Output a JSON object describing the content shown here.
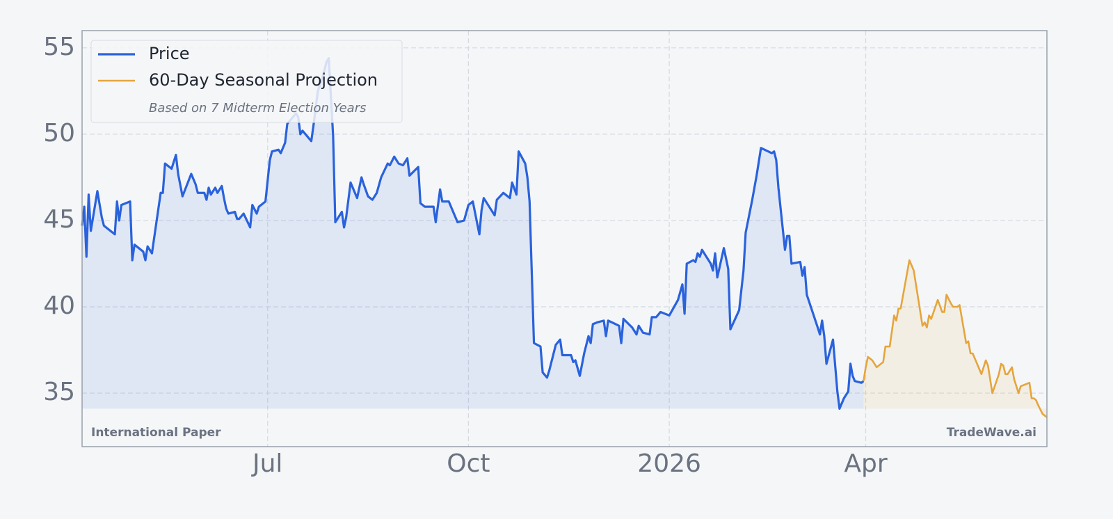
{
  "chart_data": {
    "type": "line",
    "footer_left": "International Paper",
    "footer_right": "TradeWave.ai",
    "legend_note": "Based on 7 Midterm Election Years",
    "legend": "upper left",
    "grid": true,
    "area_fill": true,
    "xlim": [
      "2025-04-07",
      "2026-06-23"
    ],
    "xticks": [
      {
        "value": "2025-07-01",
        "label": "Jul"
      },
      {
        "value": "2025-10-01",
        "label": "Oct"
      },
      {
        "value": "2026-01-01",
        "label": "2026"
      },
      {
        "value": "2026-04-01",
        "label": "Apr"
      }
    ],
    "ylim": [
      31.9,
      56.0
    ],
    "yticks": [
      35,
      40,
      45,
      50,
      55
    ],
    "series": [
      {
        "name": "Price",
        "color": "#2a62dc",
        "x": [
          "2025-04-07",
          "2025-04-08",
          "2025-04-09",
          "2025-04-10",
          "2025-04-11",
          "2025-04-14",
          "2025-04-16",
          "2025-04-17",
          "2025-04-20",
          "2025-04-22",
          "2025-04-23",
          "2025-04-24",
          "2025-04-25",
          "2025-04-29",
          "2025-04-30",
          "2025-05-01",
          "2025-05-05",
          "2025-05-06",
          "2025-05-07",
          "2025-05-09",
          "2025-05-13",
          "2025-05-14",
          "2025-05-15",
          "2025-05-18",
          "2025-05-20",
          "2025-05-21",
          "2025-05-23",
          "2025-05-27",
          "2025-05-29",
          "2025-05-30",
          "2025-06-02",
          "2025-06-03",
          "2025-06-04",
          "2025-06-05",
          "2025-06-07",
          "2025-06-08",
          "2025-06-10",
          "2025-06-11",
          "2025-06-12",
          "2025-06-13",
          "2025-06-16",
          "2025-06-17",
          "2025-06-18",
          "2025-06-20",
          "2025-06-23",
          "2025-06-24",
          "2025-06-26",
          "2025-06-27",
          "2025-06-30",
          "2025-07-02",
          "2025-07-03",
          "2025-07-06",
          "2025-07-07",
          "2025-07-09",
          "2025-07-10",
          "2025-07-14",
          "2025-07-15",
          "2025-07-16",
          "2025-07-17",
          "2025-07-21",
          "2025-07-22",
          "2025-07-24",
          "2025-07-26",
          "2025-07-28",
          "2025-07-29",
          "2025-07-31",
          "2025-08-01",
          "2025-08-04",
          "2025-08-05",
          "2025-08-06",
          "2025-08-08",
          "2025-08-11",
          "2025-08-13",
          "2025-08-14",
          "2025-08-16",
          "2025-08-18",
          "2025-08-20",
          "2025-08-22",
          "2025-08-25",
          "2025-08-26",
          "2025-08-28",
          "2025-08-30",
          "2025-09-01",
          "2025-09-03",
          "2025-09-04",
          "2025-09-08",
          "2025-09-09",
          "2025-09-11",
          "2025-09-15",
          "2025-09-16",
          "2025-09-18",
          "2025-09-19",
          "2025-09-22",
          "2025-09-23",
          "2025-09-26",
          "2025-09-29",
          "2025-10-01",
          "2025-10-03",
          "2025-10-06",
          "2025-10-07",
          "2025-10-08",
          "2025-10-13",
          "2025-10-14",
          "2025-10-17",
          "2025-10-20",
          "2025-10-21",
          "2025-10-23",
          "2025-10-24",
          "2025-10-27",
          "2025-10-28",
          "2025-10-29",
          "2025-10-31",
          "2025-11-03",
          "2025-11-04",
          "2025-11-06",
          "2025-11-07",
          "2025-11-10",
          "2025-11-12",
          "2025-11-13",
          "2025-11-17",
          "2025-11-18",
          "2025-11-19",
          "2025-11-21",
          "2025-11-23",
          "2025-11-25",
          "2025-11-26",
          "2025-11-27",
          "2025-11-29",
          "2025-12-02",
          "2025-12-03",
          "2025-12-04",
          "2025-12-09",
          "2025-12-10",
          "2025-12-11",
          "2025-12-15",
          "2025-12-17",
          "2025-12-18",
          "2025-12-20",
          "2025-12-23",
          "2025-12-24",
          "2025-12-26",
          "2025-12-28",
          "2025-12-30",
          "2026-01-01",
          "2026-01-05",
          "2026-01-07",
          "2026-01-08",
          "2026-01-09",
          "2026-01-12",
          "2026-01-13",
          "2026-01-14",
          "2026-01-15",
          "2026-01-16",
          "2026-01-20",
          "2026-01-21",
          "2026-01-22",
          "2026-01-23",
          "2026-01-26",
          "2026-01-28",
          "2026-01-29",
          "2026-02-02",
          "2026-02-04",
          "2026-02-05",
          "2026-02-08",
          "2026-02-10",
          "2026-02-12",
          "2026-02-17",
          "2026-02-18",
          "2026-02-19",
          "2026-02-20",
          "2026-02-23",
          "2026-02-24",
          "2026-02-25",
          "2026-02-26",
          "2026-03-02",
          "2026-03-03",
          "2026-03-04",
          "2026-03-05",
          "2026-03-10",
          "2026-03-11",
          "2026-03-12",
          "2026-03-13",
          "2026-03-14",
          "2026-03-17",
          "2026-03-18",
          "2026-03-19",
          "2026-03-20",
          "2026-03-22",
          "2026-03-24",
          "2026-03-25",
          "2026-03-26",
          "2026-03-27",
          "2026-03-30",
          "2026-03-31"
        ],
        "values": [
          44.7,
          45.8,
          42.9,
          46.5,
          44.4,
          46.7,
          45.2,
          44.7,
          44.4,
          44.2,
          46.1,
          45.0,
          45.9,
          46.1,
          42.7,
          43.6,
          43.2,
          42.7,
          43.5,
          43.1,
          46.6,
          46.6,
          48.3,
          48.0,
          48.8,
          47.7,
          46.4,
          47.7,
          47.1,
          46.6,
          46.6,
          46.2,
          46.9,
          46.5,
          46.9,
          46.6,
          47.0,
          46.3,
          45.7,
          45.4,
          45.5,
          45.1,
          45.1,
          45.4,
          44.6,
          45.9,
          45.4,
          45.8,
          46.1,
          48.5,
          49.0,
          49.1,
          48.9,
          49.5,
          50.6,
          51.2,
          51.0,
          50.0,
          50.2,
          49.6,
          50.5,
          52.5,
          53.2,
          54.2,
          54.4,
          49.9,
          44.9,
          45.5,
          44.6,
          45.2,
          47.2,
          46.3,
          47.5,
          47.1,
          46.4,
          46.2,
          46.6,
          47.5,
          48.3,
          48.2,
          48.7,
          48.3,
          48.2,
          48.6,
          47.6,
          48.1,
          46.0,
          45.8,
          45.8,
          44.9,
          46.8,
          46.1,
          46.1,
          45.8,
          44.9,
          45.0,
          45.9,
          46.1,
          44.2,
          45.6,
          46.3,
          45.3,
          46.2,
          46.6,
          46.3,
          47.2,
          46.5,
          49.0,
          48.3,
          47.5,
          46.1,
          37.9,
          37.7,
          36.2,
          35.9,
          36.3,
          37.8,
          38.1,
          37.2,
          37.2,
          36.8,
          36.9,
          36.0,
          37.3,
          38.3,
          37.9,
          39.0,
          39.1,
          39.2,
          38.3,
          39.2,
          38.9,
          37.9,
          39.3,
          38.8,
          38.4,
          38.9,
          38.5,
          38.4,
          39.4,
          39.4,
          39.7,
          39.6,
          39.5,
          40.4,
          41.3,
          39.6,
          42.5,
          42.7,
          42.6,
          43.1,
          42.9,
          43.3,
          42.5,
          42.1,
          43.1,
          41.7,
          43.4,
          42.2,
          38.7,
          39.8,
          42.1,
          44.3,
          46.2,
          47.6,
          49.2,
          48.9,
          49.0,
          48.5,
          46.9,
          43.3,
          44.1,
          44.1,
          42.5,
          42.6,
          41.8,
          42.3,
          40.7,
          38.8,
          38.4,
          39.2,
          38.3,
          36.7,
          38.1,
          36.6,
          35.1,
          34.1,
          34.7,
          35.1,
          36.7,
          36.0,
          35.7,
          35.6,
          35.7
        ]
      },
      {
        "name": "60-Day Seasonal Projection",
        "color": "#e5a53c",
        "x": [
          "2026-03-31",
          "2026-04-01",
          "2026-04-02",
          "2026-04-04",
          "2026-04-06",
          "2026-04-09",
          "2026-04-10",
          "2026-04-12",
          "2026-04-14",
          "2026-04-15",
          "2026-04-16",
          "2026-04-17",
          "2026-04-21",
          "2026-04-23",
          "2026-04-27",
          "2026-04-28",
          "2026-04-29",
          "2026-04-30",
          "2026-05-01",
          "2026-05-04",
          "2026-05-06",
          "2026-05-07",
          "2026-05-08",
          "2026-05-10",
          "2026-05-11",
          "2026-05-13",
          "2026-05-14",
          "2026-05-17",
          "2026-05-18",
          "2026-05-19",
          "2026-05-20",
          "2026-05-22",
          "2026-05-24",
          "2026-05-26",
          "2026-05-27",
          "2026-05-29",
          "2026-06-01",
          "2026-06-02",
          "2026-06-03",
          "2026-06-04",
          "2026-06-05",
          "2026-06-07",
          "2026-06-08",
          "2026-06-10",
          "2026-06-11",
          "2026-06-15",
          "2026-06-16",
          "2026-06-17",
          "2026-06-18",
          "2026-06-19",
          "2026-06-21",
          "2026-06-23"
        ],
        "values": [
          35.7,
          36.5,
          37.1,
          36.9,
          36.5,
          36.8,
          37.7,
          37.7,
          39.5,
          39.2,
          39.9,
          39.9,
          42.7,
          42.1,
          38.9,
          39.1,
          38.8,
          39.5,
          39.3,
          40.4,
          39.7,
          39.7,
          40.7,
          40.2,
          40.0,
          40.0,
          40.1,
          37.9,
          38.0,
          37.3,
          37.3,
          36.7,
          36.1,
          36.9,
          36.6,
          35.0,
          36.1,
          36.7,
          36.6,
          36.1,
          36.1,
          36.5,
          35.8,
          35.0,
          35.4,
          35.6,
          34.7,
          34.7,
          34.6,
          34.3,
          33.8,
          33.6
        ]
      }
    ]
  }
}
